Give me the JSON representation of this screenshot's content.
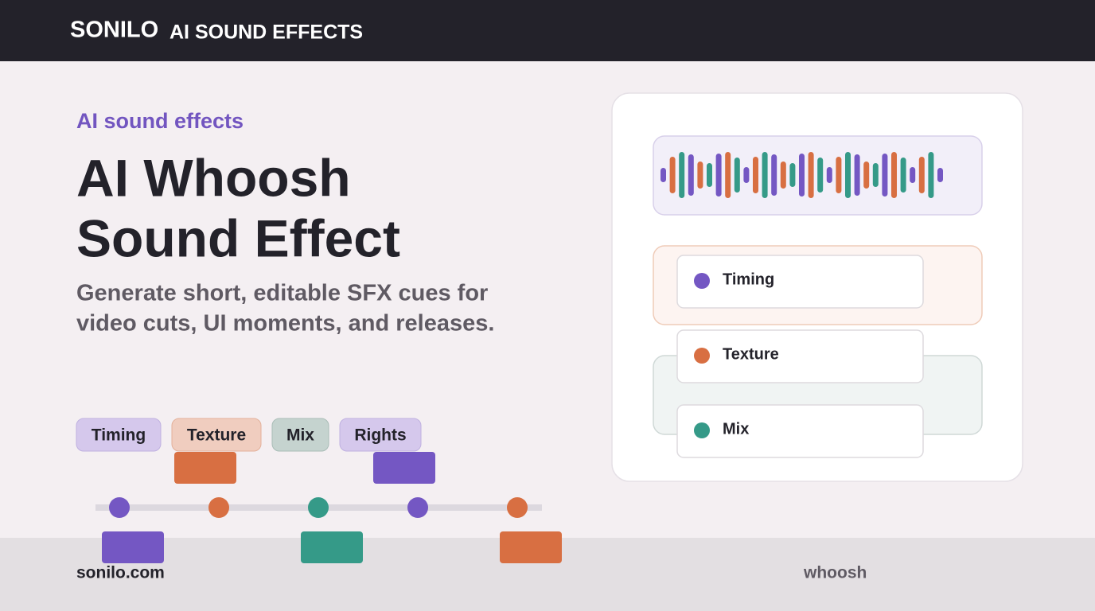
{
  "header": {
    "brand": "SONILO",
    "section": "AI SOUND EFFECTS"
  },
  "hero": {
    "eyebrow": "AI sound effects",
    "title_lines": [
      "AI Whoosh",
      "Sound Effect"
    ],
    "subtitle_lines": [
      "Generate short, editable SFX cues for",
      "video cuts, UI moments, and releases."
    ]
  },
  "chips": [
    "Timing",
    "Texture",
    "Mix",
    "Rights"
  ],
  "card": {
    "items": [
      "Timing",
      "Texture",
      "Mix"
    ]
  },
  "footer": {
    "domain": "sonilo.com",
    "tag": "whoosh"
  }
}
